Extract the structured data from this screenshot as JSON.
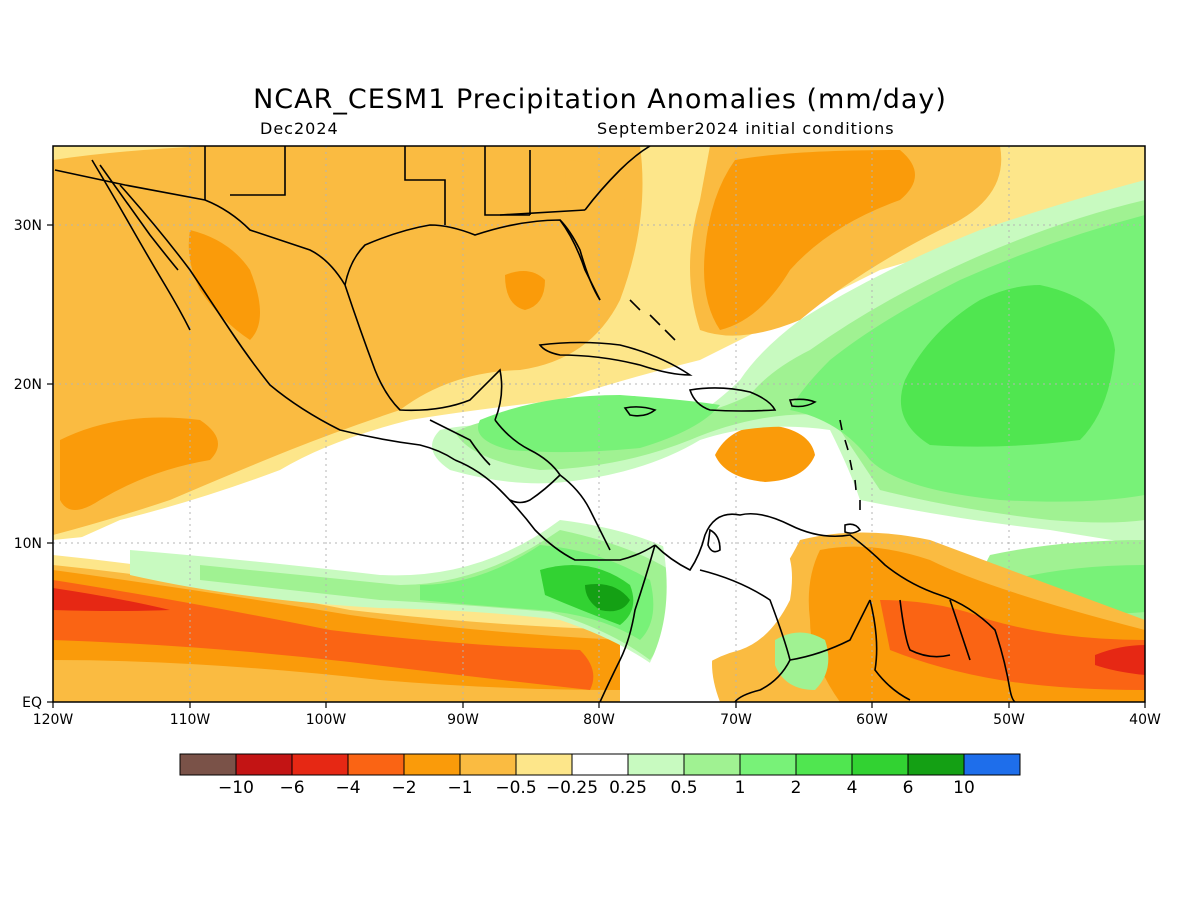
{
  "header": {
    "title": "NCAR_CESM1 Precipitation Anomalies (mm/day)",
    "valid": "Dec2024",
    "init": "September2024 initial conditions"
  },
  "axes": {
    "lon_labels": [
      "120W",
      "110W",
      "100W",
      "90W",
      "80W",
      "70W",
      "60W",
      "50W",
      "40W"
    ],
    "lat_labels": [
      "EQ",
      "10N",
      "20N",
      "30N"
    ]
  },
  "colorbar": {
    "colors": [
      "#7a5248",
      "#c31414",
      "#e62814",
      "#fa6414",
      "#fa9b0a",
      "#fabb41",
      "#fde68a",
      "#ffffff",
      "#c8fac0",
      "#a0f292",
      "#78f278",
      "#50e650",
      "#32d232",
      "#14a014",
      "#1e6eeb"
    ],
    "labels": [
      "−10",
      "−6",
      "−4",
      "−2",
      "−1",
      "−0.5",
      "−0.25",
      "0.25",
      "0.5",
      "1",
      "2",
      "4",
      "6",
      "10"
    ]
  },
  "map_colors": {
    "ocean_bg": "#ffffff",
    "grid": "#b4b4b4",
    "coast": "#000000"
  }
}
